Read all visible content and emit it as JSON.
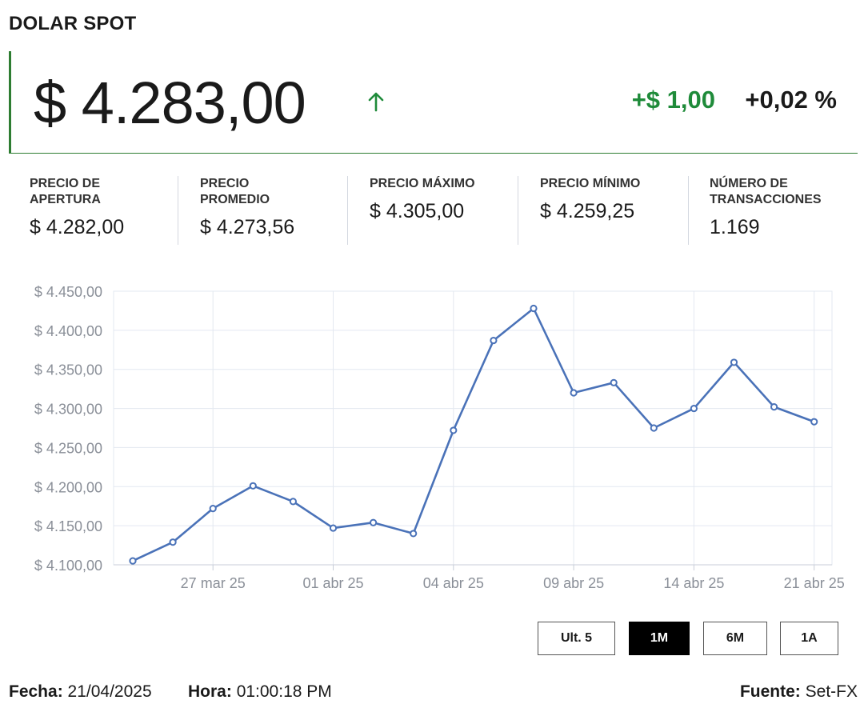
{
  "header": {
    "title": "DOLAR SPOT"
  },
  "quote": {
    "price": "$ 4.283,00",
    "direction": "up-arrow-icon",
    "change_abs": "+$ 1,00",
    "change_pct": "+0,02 %",
    "up_color": "#1f8b3a"
  },
  "stats": [
    {
      "label": "PRECIO DE\nAPERTURA",
      "value": "$ 4.282,00"
    },
    {
      "label": "PRECIO\nPROMEDIO",
      "value": "$ 4.273,56"
    },
    {
      "label": "PRECIO MÁXIMO",
      "value": "$ 4.305,00"
    },
    {
      "label": "PRECIO MÍNIMO",
      "value": "$ 4.259,25"
    },
    {
      "label": "NÚMERO DE\nTRANSACCIONES",
      "value": "1.169"
    }
  ],
  "ranges": {
    "buttons": [
      "Ult. 5",
      "1M",
      "6M",
      "1A"
    ],
    "selected": "1M"
  },
  "footer": {
    "date_label": "Fecha:",
    "date_value": "21/04/2025",
    "time_label": "Hora:",
    "time_value": "01:00:18 PM",
    "source_label": "Fuente:",
    "source_value": "Set-FX"
  },
  "chart_data": {
    "type": "line",
    "line_color": "#4a72b8",
    "grid": true,
    "ylim": [
      4100,
      4450
    ],
    "y_ticks": [
      {
        "value": 4100,
        "label": "$ 4.100,00"
      },
      {
        "value": 4150,
        "label": "$ 4.150,00"
      },
      {
        "value": 4200,
        "label": "$ 4.200,00"
      },
      {
        "value": 4250,
        "label": "$ 4.250,00"
      },
      {
        "value": 4300,
        "label": "$ 4.300,00"
      },
      {
        "value": 4350,
        "label": "$ 4.350,00"
      },
      {
        "value": 4400,
        "label": "$ 4.400,00"
      },
      {
        "value": 4450,
        "label": "$ 4.450,00"
      }
    ],
    "x_ticks": [
      {
        "index": 2,
        "label": "27 mar 25"
      },
      {
        "index": 5,
        "label": "01 abr 25"
      },
      {
        "index": 8,
        "label": "04 abr 25"
      },
      {
        "index": 11,
        "label": "09 abr 25"
      },
      {
        "index": 14,
        "label": "14 abr 25"
      },
      {
        "index": 17,
        "label": "21 abr 25"
      }
    ],
    "values": [
      4105,
      4129,
      4172,
      4201,
      4181,
      4147,
      4154,
      4140,
      4272,
      4387,
      4428,
      4320,
      4333,
      4275,
      4300,
      4359,
      4302,
      4283
    ]
  }
}
